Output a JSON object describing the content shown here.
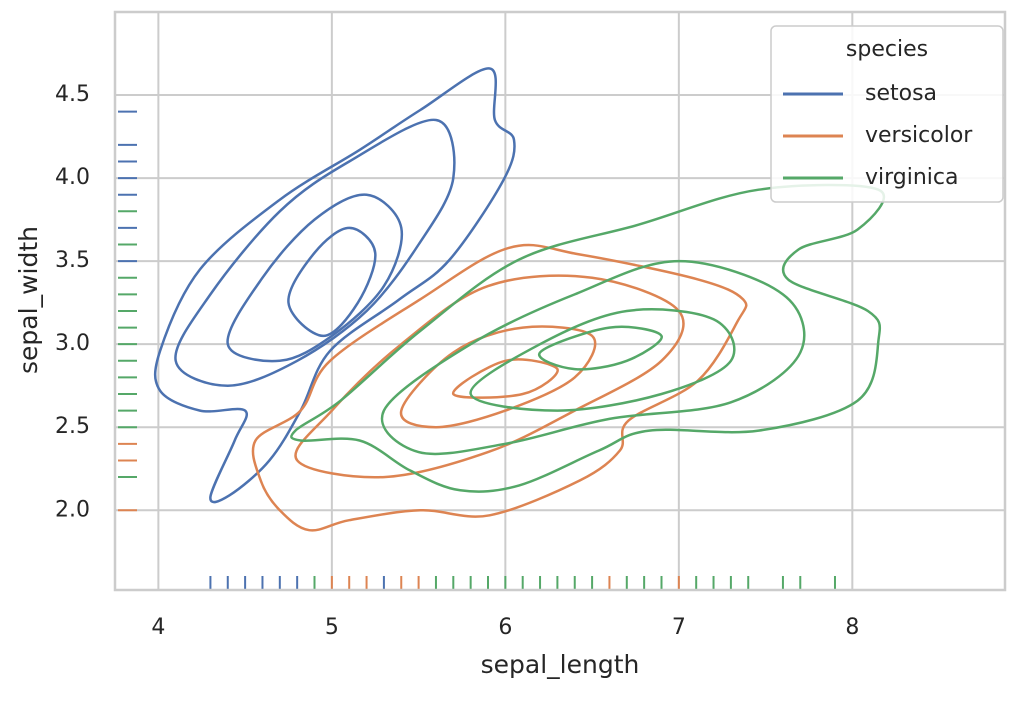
{
  "chart_data": {
    "type": "kde-contour",
    "xlabel": "sepal_length",
    "ylabel": "sepal_width",
    "xlim": [
      3.75,
      8.88
    ],
    "ylim": [
      1.52,
      5.0
    ],
    "xticks": [
      4,
      5,
      6,
      7,
      8
    ],
    "yticks": [
      {
        "value": 2,
        "label": "2.0"
      },
      2.5,
      {
        "value": 3,
        "label": "3.0"
      },
      3.5,
      {
        "value": 4,
        "label": "4.0"
      },
      4.5
    ],
    "grid": true,
    "legend_title": "species",
    "legend_position": "upper-right",
    "series": [
      {
        "name": "setosa",
        "color": "#4c72b0",
        "contours": [
          {
            "x": [
              4.3,
              4.44,
              4.5,
              4.24,
              4.01,
              4.01,
              4.24,
              4.7,
              5.16,
              5.51,
              5.91,
              5.94,
              6.05,
              5.99,
              5.68,
              5.39,
              4.99,
              4.82,
              4.64,
              4.41
            ],
            "y": [
              2.08,
              2.42,
              2.6,
              2.6,
              2.72,
              2.96,
              3.45,
              3.87,
              4.17,
              4.41,
              4.66,
              4.35,
              4.23,
              3.99,
              3.51,
              3.27,
              2.96,
              2.6,
              2.3,
              2.09
            ]
          },
          {
            "x": [
              4.1,
              4.3,
              4.7,
              5.1,
              5.6,
              5.7,
              5.5,
              5.2,
              4.8,
              4.4
            ],
            "y": [
              2.9,
              3.3,
              3.8,
              4.1,
              4.35,
              4.0,
              3.6,
              3.2,
              2.9,
              2.75
            ]
          },
          {
            "x": [
              4.4,
              4.6,
              4.9,
              5.2,
              5.4,
              5.3,
              5.0,
              4.7
            ],
            "y": [
              3.0,
              3.4,
              3.75,
              3.9,
              3.7,
              3.35,
              3.05,
              2.9
            ]
          },
          {
            "x": [
              4.75,
              4.9,
              5.1,
              5.25,
              5.15,
              4.95
            ],
            "y": [
              3.25,
              3.55,
              3.7,
              3.55,
              3.25,
              3.05
            ]
          }
        ],
        "rug_x": [
          4.3,
          4.4,
          4.5,
          4.6,
          4.7,
          4.8,
          5.3
        ],
        "rug_y": [
          4.4,
          4.2,
          4.1,
          4.0,
          3.9,
          3.7,
          3.5
        ]
      },
      {
        "name": "versicolor",
        "color": "#dd8452",
        "contours": [
          {
            "x": [
              4.59,
              4.56,
              4.82,
              4.99,
              5.51,
              6.02,
              6.43,
              7.11,
              7.37,
              7.34,
              7.11,
              6.71,
              6.66,
              6.43,
              5.91,
              5.51,
              5.1,
              4.87,
              4.7
            ],
            "y": [
              2.18,
              2.42,
              2.6,
              2.9,
              3.27,
              3.58,
              3.54,
              3.39,
              3.27,
              3.14,
              2.78,
              2.54,
              2.36,
              2.18,
              1.97,
              2.0,
              1.94,
              1.88,
              2.0
            ]
          },
          {
            "x": [
              4.8,
              5.0,
              5.4,
              5.9,
              6.5,
              7.0,
              6.9,
              6.4,
              5.9,
              5.3
            ],
            "y": [
              2.3,
              2.6,
              3.0,
              3.35,
              3.4,
              3.2,
              2.9,
              2.6,
              2.35,
              2.2
            ]
          },
          {
            "x": [
              5.4,
              5.7,
              6.1,
              6.5,
              6.4,
              6.0,
              5.6
            ],
            "y": [
              2.6,
              2.95,
              3.1,
              3.05,
              2.8,
              2.6,
              2.5
            ]
          },
          {
            "x": [
              5.7,
              6.0,
              6.3,
              6.1
            ],
            "y": [
              2.7,
              2.9,
              2.85,
              2.7
            ]
          }
        ],
        "rug_x": [
          5.0,
          5.1,
          5.2,
          5.4,
          5.5,
          6.6,
          7.0
        ],
        "rug_y": [
          2.4,
          2.3,
          2.0
        ]
      },
      {
        "name": "virginica",
        "color": "#55a868",
        "contours": [
          {
            "x": [
              4.79,
              5.05,
              5.51,
              6.08,
              6.77,
              7.46,
              8.15,
              8.03,
              7.69,
              7.63,
              8.09,
              8.15,
              8.03,
              7.46,
              6.83,
              6.54,
              6.08,
              5.74,
              5.45,
              5.16,
              4.82
            ],
            "y": [
              2.48,
              2.66,
              3.08,
              3.51,
              3.72,
              3.93,
              3.93,
              3.69,
              3.57,
              3.39,
              3.2,
              3.02,
              2.66,
              2.48,
              2.48,
              2.36,
              2.15,
              2.12,
              2.24,
              2.42,
              2.42
            ]
          },
          {
            "x": [
              5.3,
              5.8,
              6.4,
              7.0,
              7.6,
              7.7,
              7.3,
              6.6,
              6.0,
              5.5
            ],
            "y": [
              2.6,
              3.0,
              3.3,
              3.5,
              3.3,
              2.95,
              2.65,
              2.55,
              2.4,
              2.35
            ]
          },
          {
            "x": [
              5.8,
              6.2,
              6.7,
              7.2,
              7.3,
              6.9,
              6.3
            ],
            "y": [
              2.7,
              3.0,
              3.2,
              3.15,
              2.9,
              2.7,
              2.6
            ]
          },
          {
            "x": [
              6.2,
              6.6,
              6.9,
              6.7,
              6.4
            ],
            "y": [
              2.95,
              3.1,
              3.05,
              2.9,
              2.85
            ]
          }
        ],
        "rug_x": [
          4.9,
          5.6,
          5.7,
          5.8,
          5.9,
          6.0,
          6.1,
          6.2,
          6.3,
          6.4,
          6.5,
          6.7,
          6.8,
          6.9,
          7.1,
          7.2,
          7.3,
          7.4,
          7.6,
          7.7,
          7.9
        ],
        "rug_y": [
          3.8,
          3.6,
          3.4,
          3.3,
          3.2,
          3.1,
          3.0,
          2.9,
          2.8,
          2.7,
          2.6,
          2.5,
          2.2
        ]
      }
    ]
  }
}
